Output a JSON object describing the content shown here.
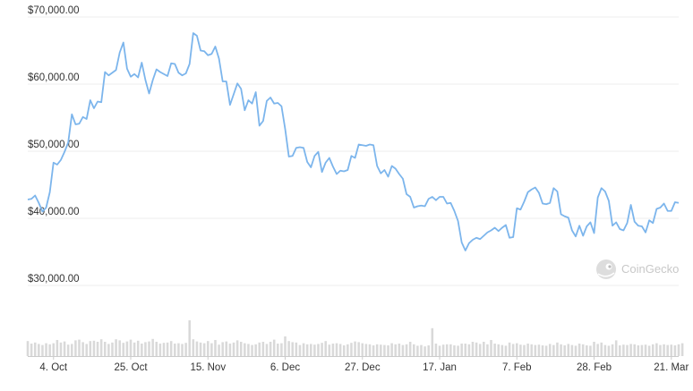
{
  "watermark": {
    "text": "CoinGecko",
    "icon": "gecko-logo-icon"
  },
  "chart_data": {
    "type": "line",
    "title": "",
    "xlabel": "",
    "ylabel": "",
    "ylim": [
      30000,
      70000
    ],
    "y_ticks": [
      {
        "value": 70000,
        "label": "$70,000.00"
      },
      {
        "value": 60000,
        "label": "$60,000.00"
      },
      {
        "value": 50000,
        "label": "$50,000.00"
      },
      {
        "value": 40000,
        "label": "$40,000.00"
      },
      {
        "value": 30000,
        "label": "$30,000.00"
      }
    ],
    "x_ticks": [
      {
        "day": 7,
        "label": "4. Oct"
      },
      {
        "day": 28,
        "label": "25. Oct"
      },
      {
        "day": 49,
        "label": "15. Nov"
      },
      {
        "day": 70,
        "label": "6. Dec"
      },
      {
        "day": 91,
        "label": "27. Dec"
      },
      {
        "day": 112,
        "label": "17. Jan"
      },
      {
        "day": 133,
        "label": "7. Feb"
      },
      {
        "day": 154,
        "label": "28. Feb"
      },
      {
        "day": 175,
        "label": "21. Mar"
      }
    ],
    "grid": true,
    "colors": {
      "line": "#7cb5ec",
      "volume": "#d9d9d9",
      "grid": "#eeeeee"
    },
    "series": [
      {
        "values": [
          42800,
          42900,
          43400,
          42300,
          41000,
          41600,
          43900,
          48300,
          48000,
          48700,
          49900,
          51300,
          55500,
          54000,
          54100,
          55100,
          54800,
          57600,
          56400,
          57400,
          57300,
          61800,
          61300,
          61700,
          62100,
          64700,
          66200,
          62300,
          61100,
          61500,
          61000,
          63200,
          60600,
          58600,
          60600,
          62200,
          61800,
          61500,
          61200,
          63100,
          63000,
          61700,
          61300,
          61600,
          63000,
          67600,
          67200,
          65000,
          64900,
          64300,
          64500,
          65600,
          63800,
          60400,
          60400,
          56900,
          58500,
          60100,
          59300,
          56100,
          57600,
          57100,
          58800,
          53800,
          54500,
          57500,
          58000,
          57100,
          57200,
          56700,
          53300,
          49200,
          49300,
          50500,
          50600,
          50500,
          48400,
          47600,
          49300,
          49900,
          46900,
          48300,
          49000,
          47700,
          46600,
          47100,
          47000,
          47200,
          49300,
          49000,
          51000,
          50900,
          50800,
          51000,
          50900,
          47800,
          46700,
          47200,
          46200,
          47800,
          47400,
          46600,
          45900,
          43600,
          43200,
          41600,
          41800,
          41900,
          41800,
          42900,
          43200,
          42700,
          43200,
          43200,
          42200,
          42300,
          41100,
          39600,
          36400,
          35200,
          36300,
          36800,
          37100,
          36900,
          37400,
          37900,
          38200,
          38600,
          38100,
          38600,
          39000,
          37100,
          37200,
          41500,
          41300,
          42500,
          43900,
          44300,
          44600,
          43800,
          42200,
          42100,
          42300,
          44500,
          44000,
          40600,
          40300,
          40100,
          38200,
          37300,
          38900,
          37400,
          38800,
          39400,
          37800,
          43100,
          44500,
          44000,
          42600,
          38900,
          39400,
          38400,
          38200,
          39300,
          42000,
          39500,
          38900,
          38800,
          37900,
          39700,
          39300,
          41400,
          41600,
          42200,
          41100,
          41100,
          42400,
          42300
        ]
      }
    ],
    "volume": {
      "unit": "relative",
      "values": [
        0.42,
        0.35,
        0.38,
        0.34,
        0.31,
        0.36,
        0.33,
        0.36,
        0.45,
        0.38,
        0.41,
        0.32,
        0.34,
        0.44,
        0.46,
        0.39,
        0.34,
        0.42,
        0.43,
        0.4,
        0.47,
        0.4,
        0.34,
        0.38,
        0.47,
        0.44,
        0.37,
        0.41,
        0.46,
        0.38,
        0.43,
        0.35,
        0.39,
        0.41,
        0.48,
        0.4,
        0.35,
        0.37,
        0.38,
        0.42,
        0.35,
        0.36,
        0.34,
        0.37,
        1.0,
        0.47,
        0.41,
        0.38,
        0.36,
        0.42,
        0.36,
        0.45,
        0.32,
        0.39,
        0.41,
        0.35,
        0.38,
        0.44,
        0.4,
        0.36,
        0.34,
        0.31,
        0.33,
        0.38,
        0.4,
        0.34,
        0.4,
        0.46,
        0.35,
        0.36,
        0.55,
        0.42,
        0.39,
        0.38,
        0.31,
        0.36,
        0.33,
        0.34,
        0.32,
        0.34,
        0.37,
        0.42,
        0.32,
        0.35,
        0.36,
        0.34,
        0.3,
        0.33,
        0.37,
        0.41,
        0.39,
        0.36,
        0.34,
        0.33,
        0.3,
        0.33,
        0.32,
        0.31,
        0.3,
        0.36,
        0.33,
        0.35,
        0.31,
        0.33,
        0.4,
        0.33,
        0.29,
        0.31,
        0.27,
        0.3,
        0.78,
        0.35,
        0.29,
        0.32,
        0.33,
        0.33,
        0.3,
        0.29,
        0.35,
        0.35,
        0.33,
        0.4,
        0.38,
        0.34,
        0.4,
        0.33,
        0.45,
        0.35,
        0.33,
        0.31,
        0.29,
        0.38,
        0.34,
        0.36,
        0.32,
        0.31,
        0.35,
        0.33,
        0.31,
        0.32,
        0.3,
        0.29,
        0.34,
        0.31,
        0.38,
        0.33,
        0.3,
        0.34,
        0.31,
        0.29,
        0.35,
        0.33,
        0.3,
        0.29,
        0.4,
        0.34,
        0.38,
        0.31,
        0.29,
        0.33,
        0.44,
        0.3,
        0.32,
        0.31,
        0.34,
        0.33,
        0.3,
        0.31,
        0.32,
        0.29,
        0.33,
        0.36,
        0.31,
        0.33,
        0.31,
        0.32,
        0.3,
        0.33,
        0.36
      ]
    }
  }
}
